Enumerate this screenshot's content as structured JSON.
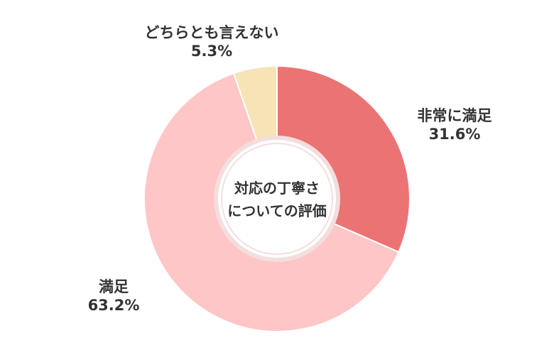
{
  "chart_data": {
    "type": "pie",
    "center_text": [
      "対応の丁寧さ",
      "についての評価"
    ],
    "slices": [
      {
        "label": "非常に満足",
        "value": 31.6,
        "value_text": "31.6%",
        "color": "#EC7374"
      },
      {
        "label": "満足",
        "value": 63.2,
        "value_text": "63.2%",
        "color": "#FEC6C7"
      },
      {
        "label": "どちらとも言えない",
        "value": 5.3,
        "value_text": "5.3%",
        "color": "#F6E3B6"
      }
    ]
  }
}
